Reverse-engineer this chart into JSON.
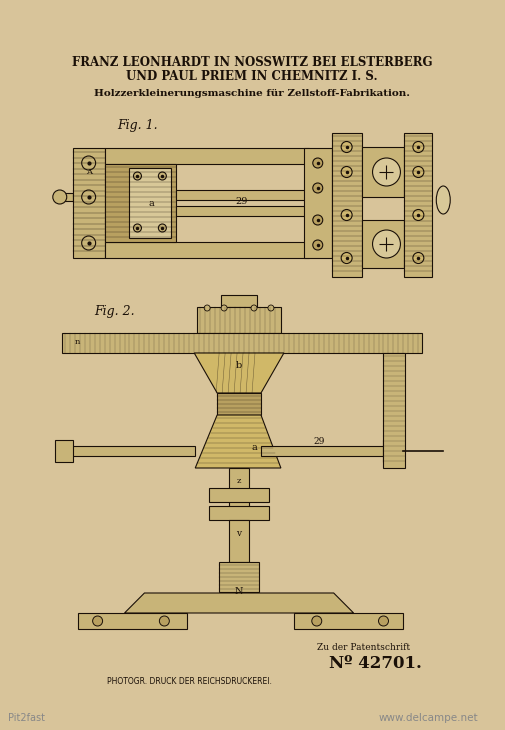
{
  "bg_color": "#d8c49a",
  "title_line1": "FRANZ LEONHARDT IN NOSSWITZ BEI ELSTERBERG",
  "title_line2": "UND PAUL PRIEM IN CHEMNITZ I. S.",
  "subtitle": "Holzzerkleinerungsmaschine für Zellstoff-Fabrikation.",
  "fig1_label": "Fig. 1.",
  "fig2_label": "Fig. 2.",
  "bottom_caption": "Zu der Patentschrift",
  "patent_number": "Nº 42701.",
  "photo_credit": "PHOTOGR. DRUCK DER REICHSDRUCKEREI.",
  "watermark": "www.delcampe.net",
  "watermark2": "Pit2fast",
  "line_color": "#1a1008",
  "dark_color": "#1a1008",
  "fill_light": "#c8b478",
  "fill_med": "#b8a060",
  "fill_dark": "#a89050"
}
